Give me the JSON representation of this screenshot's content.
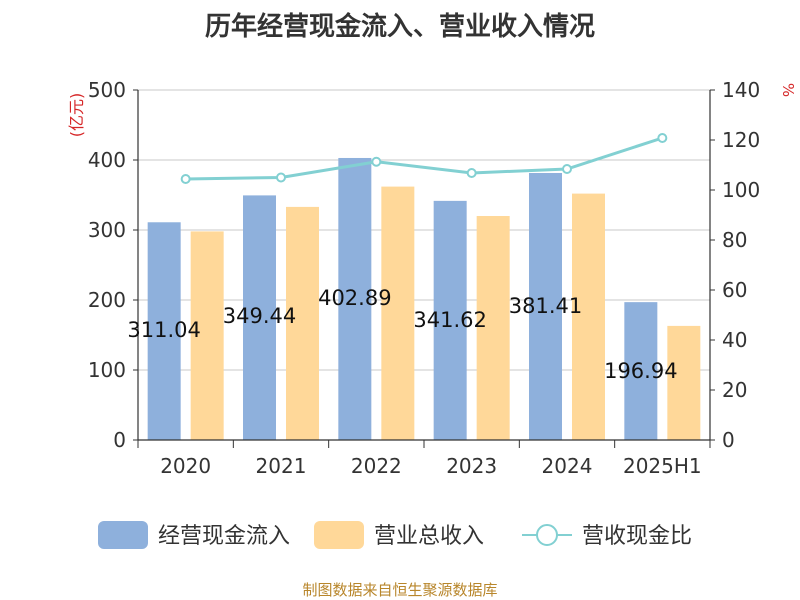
{
  "chart_data": {
    "type": "bar",
    "title": "历年经营现金流入、营业收入情况",
    "categories": [
      "2020",
      "2021",
      "2022",
      "2023",
      "2024",
      "2025H1"
    ],
    "series": [
      {
        "name": "经营现金流入",
        "kind": "bar",
        "axis": "left",
        "color": "#8eb0dc",
        "values": [
          311.04,
          349.44,
          402.89,
          341.62,
          381.41,
          196.94
        ],
        "labels": [
          "311.04",
          "349.44",
          "402.89",
          "341.62",
          "381.41",
          "196.94"
        ]
      },
      {
        "name": "营业总收入",
        "kind": "bar",
        "axis": "left",
        "color": "#ffd899",
        "values": [
          298,
          333,
          362,
          320,
          352,
          163
        ]
      },
      {
        "name": "营收现金比",
        "kind": "line",
        "axis": "right",
        "color": "#82d0d2",
        "values": [
          104.4,
          105.0,
          111.3,
          106.8,
          108.4,
          120.8
        ]
      }
    ],
    "y_left": {
      "label": "(亿元)",
      "min": 0,
      "max": 500,
      "ticks": [
        0,
        100,
        200,
        300,
        400,
        500
      ]
    },
    "y_right": {
      "label": "%",
      "min": 0,
      "max": 140,
      "ticks": [
        0,
        20,
        40,
        60,
        80,
        100,
        120,
        140
      ]
    },
    "grid": true,
    "legend_position": "bottom"
  },
  "source_note": "制图数据来自恒生聚源数据库"
}
